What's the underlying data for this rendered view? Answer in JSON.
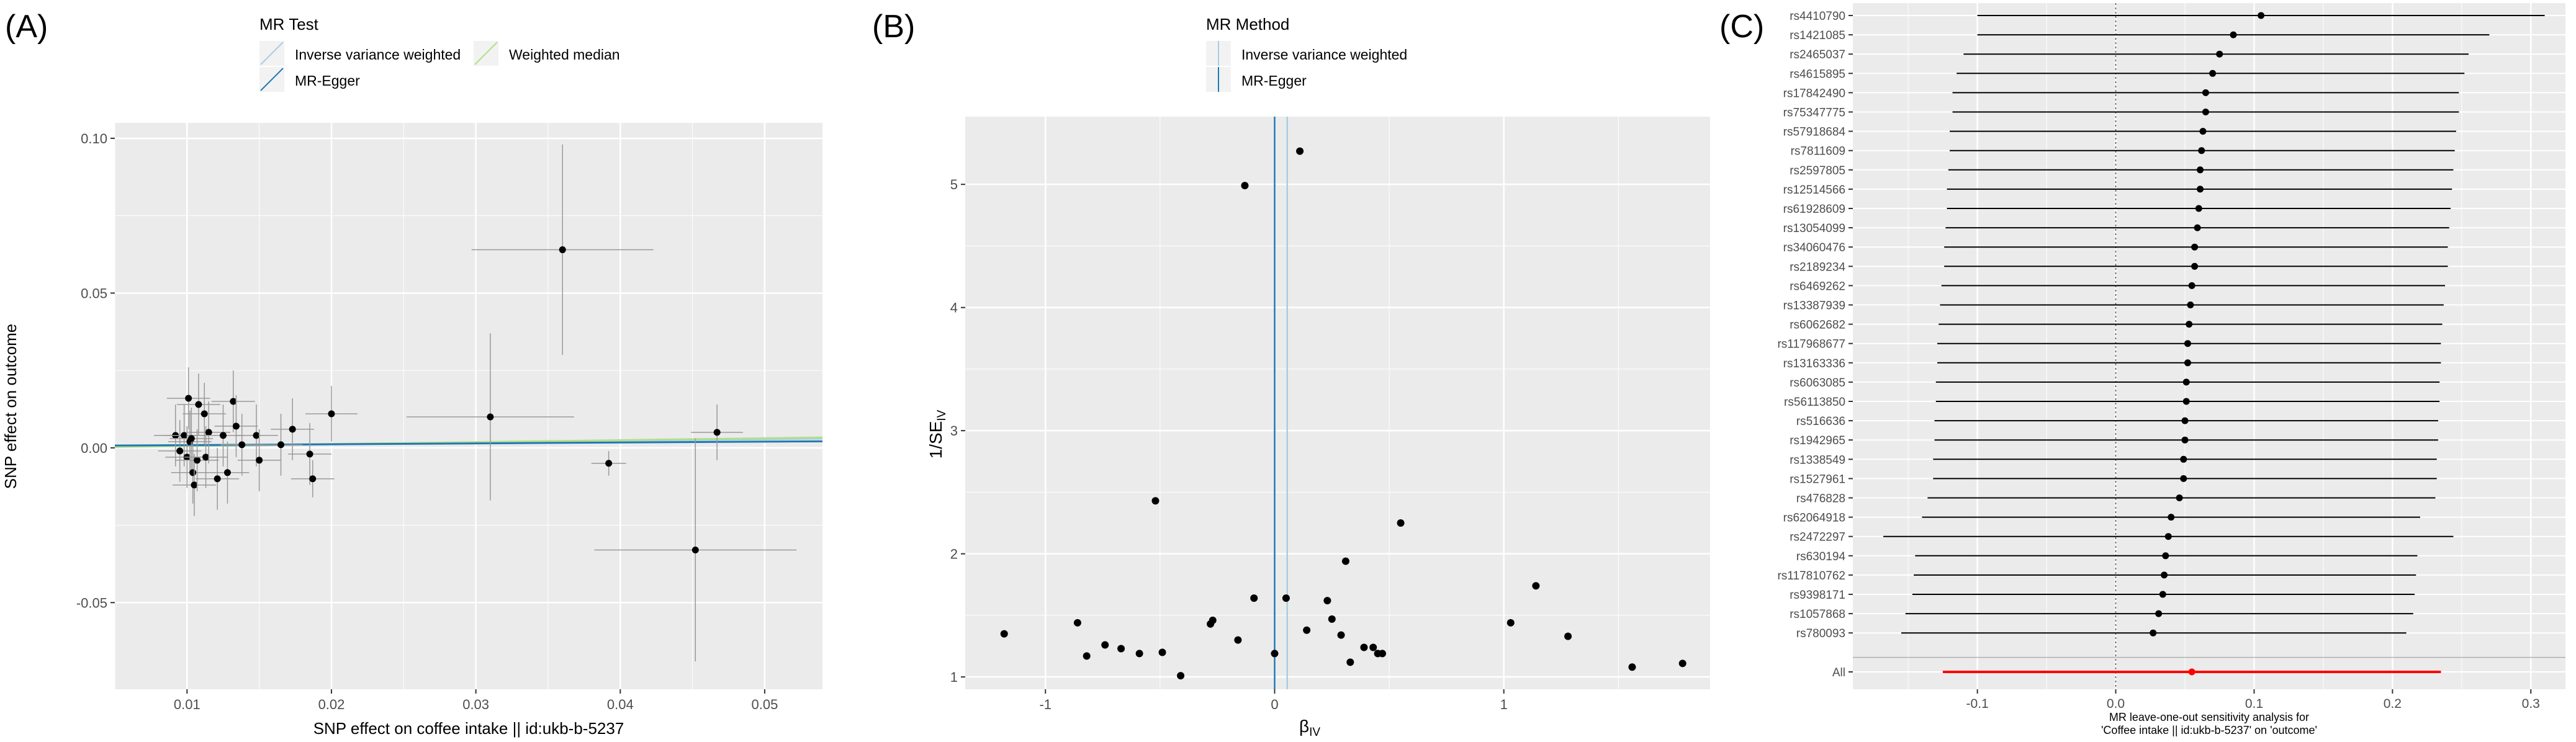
{
  "panel_labels": [
    "(A)",
    "(B)",
    "(C)"
  ],
  "colors": {
    "panel_bg": "#ebebeb",
    "grid": "#ffffff",
    "ivw": "#a6cee3",
    "egger": "#1f78b4",
    "wmedian": "#b2df8a",
    "point": "#000000",
    "all_line": "#ff0000",
    "zero_line": "#555555"
  },
  "chart_data": [
    {
      "type": "scatter",
      "panel": "A",
      "legend_title": "MR Test",
      "legend_items": [
        "Inverse variance weighted",
        "Weighted median",
        "MR-Egger"
      ],
      "xlabel": "SNP effect on coffee intake || id:ukb-b-5237",
      "ylabel": "SNP effect on outcome",
      "xlim": [
        0.005,
        0.054
      ],
      "ylim": [
        -0.078,
        0.105
      ],
      "x_ticks": [
        0.01,
        0.02,
        0.03,
        0.04,
        0.05
      ],
      "x_tick_labels": [
        "0.01",
        "0.02",
        "0.03",
        "0.04",
        "0.05"
      ],
      "y_ticks": [
        -0.05,
        0.0,
        0.05,
        0.1
      ],
      "y_tick_labels": [
        "-0.05",
        "0.00",
        "0.05",
        "0.10"
      ],
      "grid": true,
      "lines": [
        {
          "name": "Inverse variance weighted",
          "slope": 0.055,
          "intercept": 0.0
        },
        {
          "name": "Weighted median",
          "slope": 0.062,
          "intercept": 0.0
        },
        {
          "name": "MR-Egger",
          "slope": 0.028,
          "intercept": 0.0006
        }
      ],
      "points": [
        {
          "x": 0.0092,
          "y": 0.004,
          "xse": 0.0015,
          "yse": 0.01
        },
        {
          "x": 0.0095,
          "y": -0.001,
          "xse": 0.0015,
          "yse": 0.01
        },
        {
          "x": 0.0098,
          "y": 0.004,
          "xse": 0.0015,
          "yse": 0.01
        },
        {
          "x": 0.01,
          "y": -0.003,
          "xse": 0.0015,
          "yse": 0.01
        },
        {
          "x": 0.0101,
          "y": 0.016,
          "xse": 0.0015,
          "yse": 0.01
        },
        {
          "x": 0.0102,
          "y": 0.002,
          "xse": 0.0015,
          "yse": 0.01
        },
        {
          "x": 0.0103,
          "y": 0.003,
          "xse": 0.0015,
          "yse": 0.01
        },
        {
          "x": 0.0104,
          "y": -0.008,
          "xse": 0.0015,
          "yse": 0.01
        },
        {
          "x": 0.0105,
          "y": -0.012,
          "xse": 0.0015,
          "yse": 0.01
        },
        {
          "x": 0.0107,
          "y": -0.004,
          "xse": 0.0015,
          "yse": 0.01
        },
        {
          "x": 0.0108,
          "y": 0.014,
          "xse": 0.0015,
          "yse": 0.01
        },
        {
          "x": 0.0112,
          "y": 0.011,
          "xse": 0.0015,
          "yse": 0.01
        },
        {
          "x": 0.0113,
          "y": -0.003,
          "xse": 0.0015,
          "yse": 0.01
        },
        {
          "x": 0.0115,
          "y": 0.005,
          "xse": 0.0015,
          "yse": 0.01
        },
        {
          "x": 0.0121,
          "y": -0.01,
          "xse": 0.0015,
          "yse": 0.01
        },
        {
          "x": 0.0125,
          "y": 0.004,
          "xse": 0.0015,
          "yse": 0.01
        },
        {
          "x": 0.0128,
          "y": -0.008,
          "xse": 0.0015,
          "yse": 0.01
        },
        {
          "x": 0.0132,
          "y": 0.015,
          "xse": 0.0015,
          "yse": 0.01
        },
        {
          "x": 0.0134,
          "y": 0.007,
          "xse": 0.0015,
          "yse": 0.01
        },
        {
          "x": 0.0138,
          "y": 0.001,
          "xse": 0.0015,
          "yse": 0.01
        },
        {
          "x": 0.0148,
          "y": 0.004,
          "xse": 0.0015,
          "yse": 0.01
        },
        {
          "x": 0.015,
          "y": -0.004,
          "xse": 0.0015,
          "yse": 0.01
        },
        {
          "x": 0.0165,
          "y": 0.001,
          "xse": 0.0015,
          "yse": 0.01
        },
        {
          "x": 0.0173,
          "y": 0.006,
          "xse": 0.0015,
          "yse": 0.01
        },
        {
          "x": 0.0185,
          "y": -0.002,
          "xse": 0.0015,
          "yse": 0.01
        },
        {
          "x": 0.0187,
          "y": -0.01,
          "xse": 0.0015,
          "yse": 0.006
        },
        {
          "x": 0.02,
          "y": 0.011,
          "xse": 0.0018,
          "yse": 0.009
        },
        {
          "x": 0.031,
          "y": 0.01,
          "xse": 0.0058,
          "yse": 0.027
        },
        {
          "x": 0.036,
          "y": 0.064,
          "xse": 0.0063,
          "yse": 0.034
        },
        {
          "x": 0.0392,
          "y": -0.005,
          "xse": 0.0012,
          "yse": 0.004
        },
        {
          "x": 0.0452,
          "y": -0.033,
          "xse": 0.007,
          "yse": 0.036
        },
        {
          "x": 0.0467,
          "y": 0.005,
          "xse": 0.0018,
          "yse": 0.009
        }
      ]
    },
    {
      "type": "scatter",
      "panel": "B",
      "legend_title": "MR Method",
      "legend_items": [
        "Inverse variance weighted",
        "MR-Egger"
      ],
      "xlabel": "βIV",
      "ylabel": "1/SEIV",
      "xlim": [
        -1.35,
        1.9
      ],
      "ylim": [
        0.9,
        5.55
      ],
      "x_ticks": [
        -1,
        0,
        1
      ],
      "x_tick_labels": [
        "-1",
        "0",
        "1"
      ],
      "y_ticks": [
        1,
        2,
        3,
        4,
        5
      ],
      "y_tick_labels": [
        "1",
        "2",
        "3",
        "4",
        "5"
      ],
      "grid": true,
      "vlines": [
        {
          "name": "Inverse variance weighted",
          "x": 0.055
        },
        {
          "name": "MR-Egger",
          "x": 0.0
        }
      ],
      "points": [
        {
          "x": -1.18,
          "y": 1.35
        },
        {
          "x": -0.86,
          "y": 1.44
        },
        {
          "x": -0.82,
          "y": 1.17
        },
        {
          "x": -0.74,
          "y": 1.26
        },
        {
          "x": -0.67,
          "y": 1.23
        },
        {
          "x": -0.59,
          "y": 1.19
        },
        {
          "x": -0.52,
          "y": 2.43
        },
        {
          "x": -0.49,
          "y": 1.2
        },
        {
          "x": -0.41,
          "y": 1.01
        },
        {
          "x": -0.28,
          "y": 1.43
        },
        {
          "x": -0.27,
          "y": 1.46
        },
        {
          "x": -0.16,
          "y": 1.3
        },
        {
          "x": -0.13,
          "y": 4.99
        },
        {
          "x": -0.09,
          "y": 1.64
        },
        {
          "x": 0.0,
          "y": 1.19
        },
        {
          "x": 0.05,
          "y": 1.64
        },
        {
          "x": 0.11,
          "y": 5.27
        },
        {
          "x": 0.14,
          "y": 1.38
        },
        {
          "x": 0.23,
          "y": 1.62
        },
        {
          "x": 0.25,
          "y": 1.47
        },
        {
          "x": 0.29,
          "y": 1.34
        },
        {
          "x": 0.31,
          "y": 1.94
        },
        {
          "x": 0.33,
          "y": 1.12
        },
        {
          "x": 0.39,
          "y": 1.24
        },
        {
          "x": 0.43,
          "y": 1.24
        },
        {
          "x": 0.45,
          "y": 1.19
        },
        {
          "x": 0.47,
          "y": 1.19
        },
        {
          "x": 0.55,
          "y": 2.25
        },
        {
          "x": 1.03,
          "y": 1.44
        },
        {
          "x": 1.14,
          "y": 1.74
        },
        {
          "x": 1.28,
          "y": 1.33
        },
        {
          "x": 1.56,
          "y": 1.08
        },
        {
          "x": 1.78,
          "y": 1.11
        }
      ]
    },
    {
      "type": "forest",
      "panel": "C",
      "xlabel_lines": [
        "MR leave-one-out sensitivity analysis for",
        "'Coffee intake || id:ukb-b-5237' on 'outcome'"
      ],
      "xlim": [
        -0.19,
        0.325
      ],
      "x_ticks": [
        -0.1,
        0.0,
        0.1,
        0.2,
        0.3
      ],
      "x_tick_labels": [
        "-0.1",
        "0.0",
        "0.1",
        "0.2",
        "0.3"
      ],
      "grid": true,
      "snps": [
        {
          "label": "rs4410790",
          "est": 0.105,
          "lo": -0.1,
          "hi": 0.31
        },
        {
          "label": "rs1421085",
          "est": 0.085,
          "lo": -0.1,
          "hi": 0.27
        },
        {
          "label": "rs2465037",
          "est": 0.075,
          "lo": -0.11,
          "hi": 0.255
        },
        {
          "label": "rs4615895",
          "est": 0.07,
          "lo": -0.115,
          "hi": 0.252
        },
        {
          "label": "rs17842490",
          "est": 0.065,
          "lo": -0.118,
          "hi": 0.248
        },
        {
          "label": "rs75347775",
          "est": 0.065,
          "lo": -0.118,
          "hi": 0.248
        },
        {
          "label": "rs57918684",
          "est": 0.063,
          "lo": -0.12,
          "hi": 0.246
        },
        {
          "label": "rs7811609",
          "est": 0.062,
          "lo": -0.12,
          "hi": 0.245
        },
        {
          "label": "rs2597805",
          "est": 0.061,
          "lo": -0.121,
          "hi": 0.244
        },
        {
          "label": "rs12514566",
          "est": 0.061,
          "lo": -0.122,
          "hi": 0.243
        },
        {
          "label": "rs61928609",
          "est": 0.06,
          "lo": -0.122,
          "hi": 0.242
        },
        {
          "label": "rs13054099",
          "est": 0.059,
          "lo": -0.123,
          "hi": 0.241
        },
        {
          "label": "rs34060476",
          "est": 0.057,
          "lo": -0.124,
          "hi": 0.24
        },
        {
          "label": "rs2189234",
          "est": 0.057,
          "lo": -0.124,
          "hi": 0.24
        },
        {
          "label": "rs6469262",
          "est": 0.055,
          "lo": -0.126,
          "hi": 0.238
        },
        {
          "label": "rs13387939",
          "est": 0.054,
          "lo": -0.127,
          "hi": 0.237
        },
        {
          "label": "rs6062682",
          "est": 0.053,
          "lo": -0.128,
          "hi": 0.236
        },
        {
          "label": "rs117968677",
          "est": 0.052,
          "lo": -0.129,
          "hi": 0.235
        },
        {
          "label": "rs13163336",
          "est": 0.052,
          "lo": -0.129,
          "hi": 0.235
        },
        {
          "label": "rs6063085",
          "est": 0.051,
          "lo": -0.13,
          "hi": 0.234
        },
        {
          "label": "rs56113850",
          "est": 0.051,
          "lo": -0.13,
          "hi": 0.234
        },
        {
          "label": "rs516636",
          "est": 0.05,
          "lo": -0.131,
          "hi": 0.233
        },
        {
          "label": "rs1942965",
          "est": 0.05,
          "lo": -0.131,
          "hi": 0.233
        },
        {
          "label": "rs1338549",
          "est": 0.049,
          "lo": -0.132,
          "hi": 0.232
        },
        {
          "label": "rs1527961",
          "est": 0.049,
          "lo": -0.132,
          "hi": 0.232
        },
        {
          "label": "rs476828",
          "est": 0.046,
          "lo": -0.136,
          "hi": 0.231
        },
        {
          "label": "rs62064918",
          "est": 0.04,
          "lo": -0.14,
          "hi": 0.22
        },
        {
          "label": "rs2472297",
          "est": 0.038,
          "lo": -0.168,
          "hi": 0.244
        },
        {
          "label": "rs630194",
          "est": 0.036,
          "lo": -0.145,
          "hi": 0.218
        },
        {
          "label": "rs117810762",
          "est": 0.035,
          "lo": -0.146,
          "hi": 0.217
        },
        {
          "label": "rs9398171",
          "est": 0.034,
          "lo": -0.147,
          "hi": 0.216
        },
        {
          "label": "rs1057868",
          "est": 0.031,
          "lo": -0.152,
          "hi": 0.215
        },
        {
          "label": "rs780093",
          "est": 0.027,
          "lo": -0.155,
          "hi": 0.21
        }
      ],
      "overall": {
        "label": "All",
        "est": 0.055,
        "lo": -0.125,
        "hi": 0.235
      }
    }
  ]
}
